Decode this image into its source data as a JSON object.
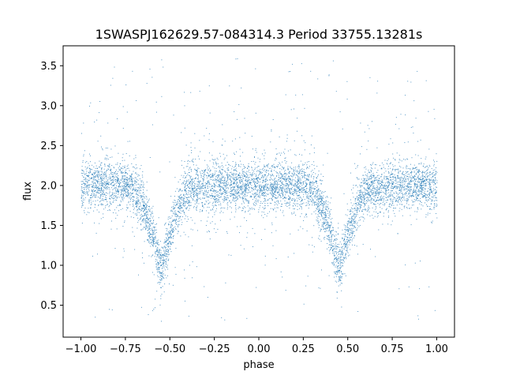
{
  "chart_data": {
    "type": "scatter",
    "title": "1SWASPJ162629.57-084314.3 Period 33755.13281s",
    "xlabel": "phase",
    "ylabel": "flux",
    "xlim": [
      -1.1,
      1.1
    ],
    "ylim": [
      0.1,
      3.75
    ],
    "x_ticks": [
      -1.0,
      -0.75,
      -0.5,
      -0.25,
      0.0,
      0.25,
      0.5,
      0.75,
      1.0
    ],
    "x_tick_labels": [
      "−1.00",
      "−0.75",
      "−0.50",
      "−0.25",
      "0.00",
      "0.25",
      "0.50",
      "0.75",
      "1.00"
    ],
    "y_ticks": [
      0.5,
      1.0,
      1.5,
      2.0,
      2.5,
      3.0,
      3.5
    ],
    "y_tick_labels": [
      "0.5",
      "1.0",
      "1.5",
      "2.0",
      "2.5",
      "3.0",
      "3.5"
    ],
    "grid": false,
    "series": [
      {
        "color": "#1f77b4",
        "marker": "point",
        "profile": {
          "x": [
            -1.0,
            -0.75,
            -0.7,
            -0.65,
            -0.6,
            -0.55,
            -0.5,
            -0.45,
            -0.4,
            -0.25,
            0.0,
            0.25,
            0.3,
            0.35,
            0.4,
            0.45,
            0.5,
            0.55,
            0.6,
            0.75,
            1.0
          ],
          "y": [
            2.0,
            2.0,
            1.95,
            1.75,
            1.4,
            0.95,
            1.4,
            1.75,
            1.95,
            2.0,
            2.0,
            2.0,
            1.95,
            1.75,
            1.4,
            0.95,
            1.4,
            1.75,
            1.95,
            2.0,
            2.0
          ]
        }
      }
    ]
  }
}
